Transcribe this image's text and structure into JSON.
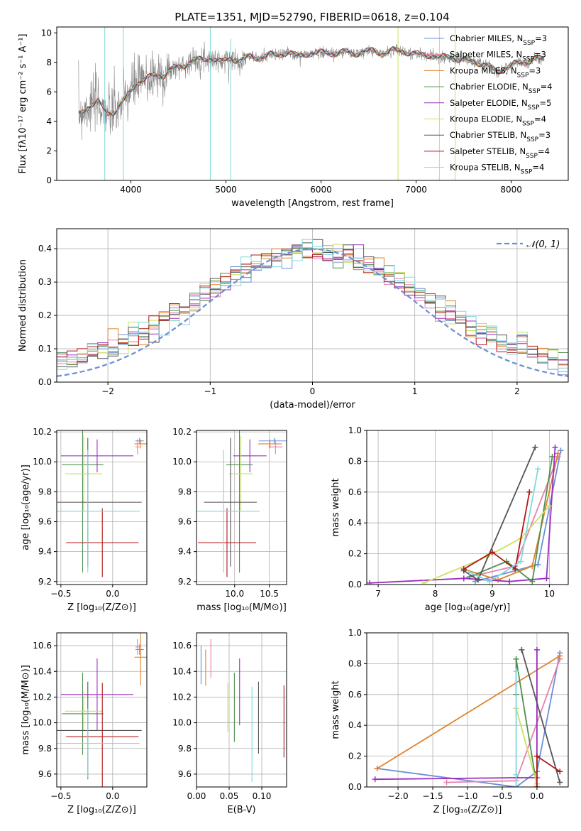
{
  "figure_title": "PLATE=1351, MJD=52790, FIBERID=0618, z=0.104",
  "model_colors": [
    "#6a8fd8",
    "#e87fb0",
    "#e0832a",
    "#4f8f4f",
    "#9b2fbf",
    "#c9e065",
    "#555555",
    "#b01818",
    "#7fd8dd"
  ],
  "chart_data": [
    {
      "id": "spectrum",
      "type": "line",
      "xlabel": "wavelength [Angstrom, rest frame]",
      "ylabel": "Flux [fλ10⁻¹⁷ erg cm⁻² s⁻¹ A⁻¹]",
      "xlim": [
        3220,
        8600
      ],
      "ylim": [
        0,
        10.4
      ],
      "xticks": [
        4000,
        5000,
        6000,
        7000,
        8000
      ],
      "yticks": [
        0,
        2,
        4,
        6,
        8,
        10
      ],
      "legend": "upper right",
      "legend_entries": [
        "Chabrier MILES, N_SSP=3",
        "Salpeter MILES, N_SSP=3",
        "Kroupa MILES, N_SSP=3",
        "Chabrier ELODIE, N_SSP=4",
        "Salpeter ELODIE, N_SSP=5",
        "Kroupa ELODIE, N_SSP=4",
        "Chabrier STELIB, N_SSP=3",
        "Salpeter STELIB, N_SSP=4",
        "Kroupa STELIB, N_SSP=4"
      ],
      "continuum": {
        "x": [
          3450,
          3550,
          3650,
          3750,
          3850,
          3950,
          4050,
          4150,
          4250,
          4350,
          4450,
          4550,
          4650,
          4750,
          4850,
          4950,
          5050,
          5150,
          5250,
          5350,
          5450,
          5550,
          5650,
          5750,
          5850,
          5950,
          6050,
          6150,
          6250,
          6350,
          6450,
          6550,
          6650,
          6750,
          6850,
          6950,
          7050,
          7150,
          7250,
          7350,
          7450,
          7550,
          7650,
          7750,
          7850,
          7950,
          8050,
          8150,
          8250,
          8350
        ],
        "y": [
          4.5,
          5.0,
          5.3,
          4.6,
          4.7,
          5.6,
          6.6,
          6.8,
          7.2,
          7.1,
          7.6,
          7.8,
          8.1,
          8.2,
          8.3,
          8.0,
          8.3,
          8.1,
          8.4,
          8.3,
          8.5,
          8.5,
          8.7,
          8.4,
          8.6,
          8.6,
          8.7,
          8.6,
          8.7,
          8.6,
          8.7,
          8.8,
          8.6,
          8.8,
          8.8,
          8.6,
          8.5,
          8.5,
          8.3,
          8.4,
          8.2,
          8.1,
          8.0,
          7.8,
          7.3,
          7.7,
          7.9,
          8.0,
          8.3,
          8.1
        ]
      },
      "spikes": [
        {
          "x": 3725,
          "ymin": 0,
          "ymax": 10.4
        },
        {
          "x": 3920,
          "ymin": 0,
          "ymax": 10.4
        },
        {
          "x": 4835,
          "ymin": 0,
          "ymax": 10.4
        },
        {
          "x": 5050,
          "ymin": 0,
          "ymax": 9.6
        },
        {
          "x": 6810,
          "ymin": 0,
          "ymax": 10.4
        },
        {
          "x": 7245,
          "ymin": 0,
          "ymax": 10.4
        },
        {
          "x": 7410,
          "ymin": 0,
          "ymax": 10.4
        }
      ]
    },
    {
      "id": "residuals",
      "type": "line",
      "xlabel": "(data-model)/error",
      "ylabel": "Normed distribution",
      "xlim": [
        -2.5,
        2.5
      ],
      "ylim": [
        0,
        0.46
      ],
      "xticks": [
        -2,
        -1,
        0,
        1,
        2
      ],
      "yticks": [
        0.0,
        0.1,
        0.2,
        0.3,
        0.4
      ],
      "legend": "upper right",
      "legend_entries": [
        "𝒩(0, 1)"
      ],
      "histogram_bin_width": 0.1,
      "gaussian": {
        "mean": 0,
        "sigma": 1
      }
    },
    {
      "id": "age-vs-Z",
      "type": "scatter",
      "xlabel": "Z [log₁₀(Z/Z⊙)]",
      "ylabel": "age  [log₁₀(age/yr)]",
      "xlim": [
        -0.54,
        0.33
      ],
      "ylim": [
        9.18,
        10.21
      ],
      "xticks": [
        -0.5,
        0.0
      ],
      "yticks": [
        9.2,
        9.4,
        9.6,
        9.8,
        10.0,
        10.2
      ],
      "points": [
        {
          "x": 0.26,
          "xerr": 0.04,
          "y": 10.14,
          "yerr": 0.02
        },
        {
          "x": 0.24,
          "xerr": 0.02,
          "y": 10.1,
          "yerr": 0.05
        },
        {
          "x": 0.27,
          "xerr": 0.06,
          "y": 10.12,
          "yerr": 0.03
        },
        {
          "x": -0.29,
          "xerr": 0.2,
          "y": 9.98,
          "yerr": 0.72
        },
        {
          "x": -0.15,
          "xerr": 0.35,
          "y": 10.04,
          "yerr": 0.11
        },
        {
          "x": -0.28,
          "xerr": 0.18,
          "y": 9.92,
          "yerr": 0.25
        },
        {
          "x": -0.24,
          "xerr": 0.52,
          "y": 9.73,
          "yerr": 0.43
        },
        {
          "x": -0.1,
          "xerr": 0.35,
          "y": 9.46,
          "yerr": 0.23
        },
        {
          "x": -0.24,
          "xerr": 0.5,
          "y": 9.67,
          "yerr": 0.41
        }
      ]
    },
    {
      "id": "age-vs-mass",
      "type": "scatter",
      "xlabel": "mass [log₁₀(M/M⊙)]",
      "ylabel": "",
      "xlim": [
        9.45,
        10.75
      ],
      "ylim": [
        9.18,
        10.21
      ],
      "xticks": [
        10.0,
        10.5
      ],
      "yticks": [
        9.2,
        9.4,
        9.6,
        9.8,
        10.0,
        10.2
      ],
      "points": [
        {
          "x": 10.57,
          "xerr": 0.22,
          "y": 10.14,
          "yerr": 0.02
        },
        {
          "x": 10.59,
          "xerr": 0.1,
          "y": 10.1,
          "yerr": 0.05
        },
        {
          "x": 10.51,
          "xerr": 0.17,
          "y": 10.12,
          "yerr": 0.03
        },
        {
          "x": 10.07,
          "xerr": 0.19,
          "y": 9.98,
          "yerr": 0.72
        },
        {
          "x": 10.22,
          "xerr": 0.24,
          "y": 10.04,
          "yerr": 0.11
        },
        {
          "x": 10.09,
          "xerr": 0.17,
          "y": 9.92,
          "yerr": 0.25
        },
        {
          "x": 9.94,
          "xerr": 0.38,
          "y": 9.73,
          "yerr": 0.43
        },
        {
          "x": 9.89,
          "xerr": 0.42,
          "y": 9.46,
          "yerr": 0.23
        },
        {
          "x": 9.84,
          "xerr": 0.52,
          "y": 9.67,
          "yerr": 0.41
        }
      ]
    },
    {
      "id": "weight-vs-age",
      "type": "line",
      "xlabel": "age  [log₁₀(age/yr)]",
      "ylabel": "mass weight",
      "xlim": [
        6.8,
        10.33
      ],
      "ylim": [
        0,
        1
      ],
      "xticks": [
        7,
        8,
        9,
        10
      ],
      "yticks": [
        0.0,
        0.2,
        0.4,
        0.6,
        0.8,
        1.0
      ],
      "series": [
        {
          "x": [
            8.7,
            9.8,
            10.2
          ],
          "y": [
            0.02,
            0.13,
            0.87
          ]
        },
        {
          "x": [
            8.5,
            9.4,
            10.15
          ],
          "y": [
            0.04,
            0.12,
            0.83
          ]
        },
        {
          "x": [
            8.5,
            9.1,
            9.7,
            10.15
          ],
          "y": [
            0.1,
            0.03,
            0.12,
            0.85
          ]
        },
        {
          "x": [
            8.6,
            9.25,
            9.7,
            10.05
          ],
          "y": [
            0.05,
            0.15,
            0.02,
            0.83
          ]
        },
        {
          "x": [
            6.85,
            8.5,
            9.3,
            9.95,
            10.1
          ],
          "y": [
            0.01,
            0.04,
            0.02,
            0.04,
            0.89
          ]
        },
        {
          "x": [
            7.8,
            8.9,
            9.5,
            10.0
          ],
          "y": [
            0.01,
            0.18,
            0.3,
            0.51
          ]
        },
        {
          "x": [
            8.5,
            8.75,
            9.75
          ],
          "y": [
            0.09,
            0.03,
            0.89
          ]
        },
        {
          "x": [
            8.5,
            9.0,
            9.4,
            9.65
          ],
          "y": [
            0.1,
            0.21,
            0.1,
            0.6
          ]
        },
        {
          "x": [
            8.6,
            8.95,
            9.5,
            9.8
          ],
          "y": [
            0.08,
            0.02,
            0.15,
            0.75
          ]
        }
      ]
    },
    {
      "id": "mass-vs-Z",
      "type": "scatter",
      "xlabel": "Z [log₁₀(Z/Z⊙)]",
      "ylabel": "mass [log₁₀(M/M⊙)]",
      "xlim": [
        -0.54,
        0.33
      ],
      "ylim": [
        9.5,
        10.7
      ],
      "xticks": [
        -0.5,
        0.0
      ],
      "yticks": [
        9.6,
        9.8,
        10.0,
        10.2,
        10.4,
        10.6
      ],
      "points": [
        {
          "x": 0.26,
          "xerr": 0.04,
          "y": 10.57,
          "yerr": 0.04
        },
        {
          "x": 0.24,
          "xerr": 0.02,
          "y": 10.59,
          "yerr": 0.06
        },
        {
          "x": 0.27,
          "xerr": 0.06,
          "y": 10.51,
          "yerr": 0.22
        },
        {
          "x": -0.29,
          "xerr": 0.2,
          "y": 10.07,
          "yerr": 0.32
        },
        {
          "x": -0.15,
          "xerr": 0.35,
          "y": 10.22,
          "yerr": 0.28
        },
        {
          "x": -0.28,
          "xerr": 0.18,
          "y": 10.09,
          "yerr": 0.15
        },
        {
          "x": -0.24,
          "xerr": 0.52,
          "y": 9.94,
          "yerr": 0.38
        },
        {
          "x": -0.1,
          "xerr": 0.35,
          "y": 9.89,
          "yerr": 0.42
        },
        {
          "x": -0.24,
          "xerr": 0.5,
          "y": 9.84,
          "yerr": 0.27
        }
      ]
    },
    {
      "id": "mass-vs-EBV",
      "type": "scatter",
      "xlabel": "E(B-V)",
      "ylabel": "",
      "xlim": [
        0,
        0.138
      ],
      "ylim": [
        9.5,
        10.7
      ],
      "xticks": [
        0.0,
        0.05,
        0.1
      ],
      "yticks": [
        9.6,
        9.8,
        10.0,
        10.2,
        10.4,
        10.6
      ],
      "points": [
        {
          "x": 0.007,
          "y": 10.45,
          "yerr": 0.15
        },
        {
          "x": 0.022,
          "y": 10.5,
          "yerr": 0.15
        },
        {
          "x": 0.014,
          "y": 10.43,
          "yerr": 0.14
        },
        {
          "x": 0.058,
          "y": 10.12,
          "yerr": 0.27
        },
        {
          "x": 0.066,
          "y": 10.24,
          "yerr": 0.26
        },
        {
          "x": 0.048,
          "y": 10.12,
          "yerr": 0.19
        },
        {
          "x": 0.095,
          "y": 10.04,
          "yerr": 0.28
        },
        {
          "x": 0.134,
          "y": 10.01,
          "yerr": 0.28
        },
        {
          "x": 0.085,
          "y": 9.91,
          "yerr": 0.37
        }
      ]
    },
    {
      "id": "weight-vs-Z",
      "type": "line",
      "xlabel": "Z [log₁₀(Z/Z⊙)]",
      "ylabel": "mass weight",
      "xlim": [
        -2.45,
        0.45
      ],
      "ylim": [
        0,
        1
      ],
      "xticks": [
        -2.0,
        -1.5,
        -1.0,
        -0.5,
        0.0
      ],
      "yticks": [
        0.0,
        0.2,
        0.4,
        0.6,
        0.8,
        1.0
      ],
      "series": [
        {
          "x": [
            -2.3,
            -0.3,
            0.0,
            0.33
          ],
          "y": [
            0.12,
            0.0,
            0.1,
            0.87
          ]
        },
        {
          "x": [
            -1.3,
            -0.3,
            0.33
          ],
          "y": [
            0.03,
            0.04,
            0.83
          ]
        },
        {
          "x": [
            -2.3,
            0.33
          ],
          "y": [
            0.12,
            0.85
          ]
        },
        {
          "x": [
            -0.3,
            -0.3,
            0.0
          ],
          "y": [
            0.6,
            0.83,
            0.0
          ]
        },
        {
          "x": [
            -2.33,
            -0.3,
            0.0,
            0.0
          ],
          "y": [
            0.05,
            0.06,
            0.06,
            0.89
          ]
        },
        {
          "x": [
            -0.3,
            0.0
          ],
          "y": [
            0.51,
            0.02
          ]
        },
        {
          "x": [
            -0.22,
            0.33
          ],
          "y": [
            0.89,
            0.03
          ]
        },
        {
          "x": [
            0.0,
            0.0,
            0.33
          ],
          "y": [
            0.0,
            0.2,
            0.1
          ]
        },
        {
          "x": [
            -0.3,
            -0.3,
            -0.3
          ],
          "y": [
            0.08,
            0.75,
            0.0
          ]
        }
      ]
    }
  ]
}
